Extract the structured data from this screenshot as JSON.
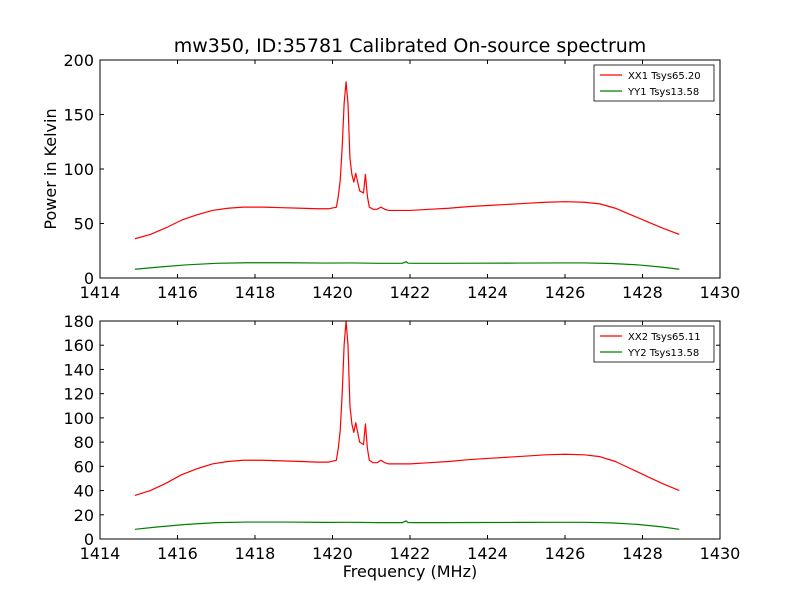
{
  "figure": {
    "title": "mw350, ID:35781 Calibrated On-source spectrum",
    "xlabel": "Frequency (MHz)"
  },
  "chart_data": [
    {
      "type": "line",
      "panel": "top",
      "title": "mw350, ID:35781 Calibrated On-source spectrum",
      "xlabel": "",
      "ylabel": "Power in Kelvin",
      "xlim": [
        1414,
        1430
      ],
      "ylim": [
        0,
        200
      ],
      "xticks": [
        1414,
        1416,
        1418,
        1420,
        1422,
        1424,
        1426,
        1428,
        1430
      ],
      "yticks": [
        0,
        50,
        100,
        150,
        200
      ],
      "grid": false,
      "legend_position": "top-right",
      "series": [
        {
          "name": "XX1 Tsys65.20",
          "color": "#ff0000",
          "x": [
            1414.9,
            1415.3,
            1415.7,
            1416.1,
            1416.5,
            1416.9,
            1417.3,
            1417.7,
            1418.2,
            1418.7,
            1419.2,
            1419.6,
            1419.9,
            1420.1,
            1420.15,
            1420.2,
            1420.25,
            1420.3,
            1420.35,
            1420.4,
            1420.45,
            1420.5,
            1420.55,
            1420.6,
            1420.65,
            1420.7,
            1420.8,
            1420.85,
            1420.9,
            1420.95,
            1421.05,
            1421.15,
            1421.25,
            1421.35,
            1421.45,
            1421.6,
            1422.0,
            1422.5,
            1423.0,
            1423.5,
            1424.0,
            1424.5,
            1425.0,
            1425.5,
            1426.0,
            1426.5,
            1426.9,
            1427.3,
            1427.7,
            1428.1,
            1428.5,
            1428.95
          ],
          "y": [
            36,
            40,
            46,
            53,
            58,
            62,
            64,
            65,
            65,
            64.5,
            64,
            63.5,
            63.5,
            65,
            75,
            90,
            120,
            160,
            180,
            160,
            110,
            95,
            88,
            96,
            88,
            80,
            78,
            95,
            75,
            65,
            63,
            63,
            65,
            63,
            62,
            62,
            62,
            63,
            64,
            65.5,
            66.5,
            67.5,
            68.5,
            69.5,
            70,
            69.5,
            68,
            64,
            58,
            52,
            46,
            40
          ]
        },
        {
          "name": "YY1 Tsys13.58",
          "color": "#008000",
          "x": [
            1414.9,
            1415.5,
            1416.2,
            1417.0,
            1417.8,
            1418.8,
            1419.8,
            1420.5,
            1421.2,
            1421.8,
            1421.9,
            1421.95,
            1422.1,
            1422.8,
            1423.8,
            1424.8,
            1425.8,
            1426.5,
            1427.2,
            1427.9,
            1428.5,
            1428.95
          ],
          "y": [
            8,
            10,
            12,
            13.5,
            14,
            14,
            13.7,
            13.8,
            13.5,
            13.5,
            15,
            13.6,
            13.5,
            13.5,
            13.6,
            13.7,
            13.8,
            13.8,
            13.3,
            12,
            10,
            8
          ]
        }
      ]
    },
    {
      "type": "line",
      "panel": "bottom",
      "title": "",
      "xlabel": "Frequency (MHz)",
      "ylabel": "",
      "xlim": [
        1414,
        1430
      ],
      "ylim": [
        0,
        180
      ],
      "xticks": [
        1414,
        1416,
        1418,
        1420,
        1422,
        1424,
        1426,
        1428,
        1430
      ],
      "yticks": [
        0,
        20,
        40,
        60,
        80,
        100,
        120,
        140,
        160,
        180
      ],
      "grid": false,
      "legend_position": "top-right",
      "series": [
        {
          "name": "XX2 Tsys65.11",
          "color": "#ff0000",
          "x": [
            1414.9,
            1415.3,
            1415.7,
            1416.1,
            1416.5,
            1416.9,
            1417.3,
            1417.7,
            1418.2,
            1418.7,
            1419.2,
            1419.6,
            1419.9,
            1420.1,
            1420.15,
            1420.2,
            1420.25,
            1420.3,
            1420.35,
            1420.4,
            1420.45,
            1420.5,
            1420.55,
            1420.6,
            1420.65,
            1420.7,
            1420.8,
            1420.85,
            1420.9,
            1420.95,
            1421.05,
            1421.15,
            1421.25,
            1421.35,
            1421.45,
            1421.6,
            1422.0,
            1422.5,
            1423.0,
            1423.5,
            1424.0,
            1424.5,
            1425.0,
            1425.5,
            1426.0,
            1426.5,
            1426.9,
            1427.3,
            1427.7,
            1428.1,
            1428.5,
            1428.95
          ],
          "y": [
            36,
            40,
            46,
            53,
            58,
            62,
            64,
            65,
            65,
            64.5,
            64,
            63.5,
            63.5,
            65,
            75,
            90,
            120,
            160,
            180,
            160,
            110,
            95,
            88,
            96,
            88,
            80,
            78,
            95,
            75,
            65,
            63,
            63,
            65,
            63,
            62,
            62,
            62,
            63,
            64,
            65.5,
            66.5,
            67.5,
            68.5,
            69.5,
            70,
            69.5,
            68,
            64,
            58,
            52,
            46,
            40
          ]
        },
        {
          "name": "YY2 Tsys13.58",
          "color": "#008000",
          "x": [
            1414.9,
            1415.5,
            1416.2,
            1417.0,
            1417.8,
            1418.8,
            1419.8,
            1420.5,
            1421.2,
            1421.8,
            1421.9,
            1421.95,
            1422.1,
            1422.8,
            1423.8,
            1424.8,
            1425.8,
            1426.5,
            1427.2,
            1427.9,
            1428.5,
            1428.95
          ],
          "y": [
            8,
            10,
            12,
            13.5,
            14,
            14,
            13.7,
            13.8,
            13.5,
            13.5,
            15,
            13.6,
            13.5,
            13.5,
            13.6,
            13.7,
            13.8,
            13.8,
            13.3,
            12,
            10,
            8
          ]
        }
      ]
    }
  ]
}
